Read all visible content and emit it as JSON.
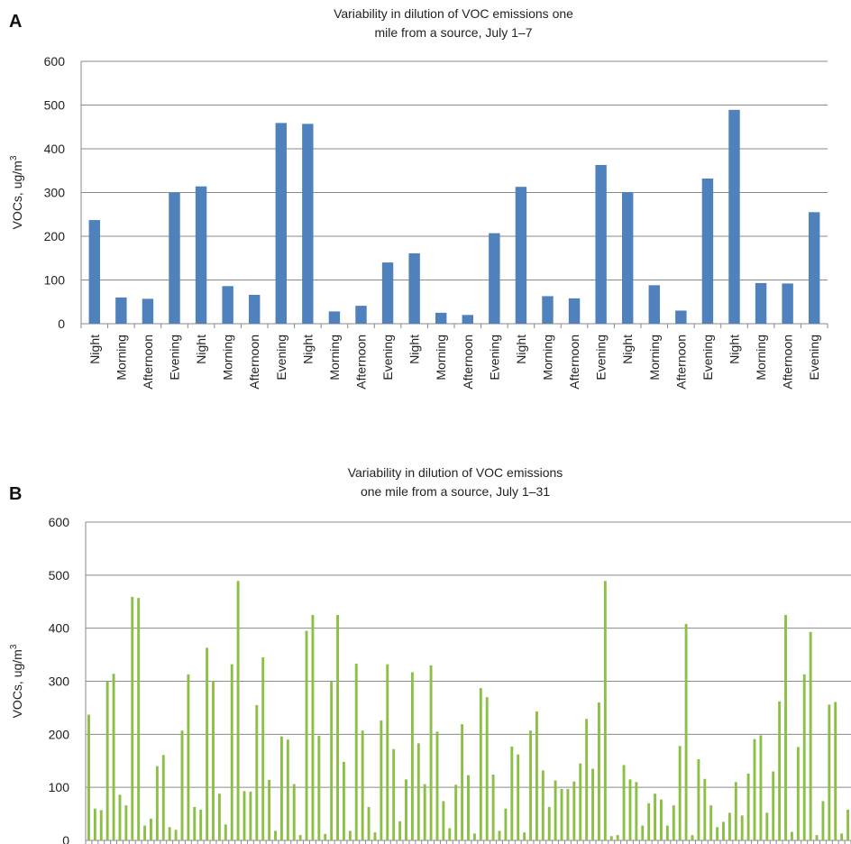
{
  "chart_data": [
    {
      "panel_label": "A",
      "type": "bar",
      "title_lines": [
        "Variability in dilution of VOC emissions one",
        "mile from a source, July 1–7"
      ],
      "ylabel": "VOCs, ug/m",
      "ylabel_sup": "3",
      "ylim": [
        0,
        600
      ],
      "yticks": [
        0,
        100,
        200,
        300,
        400,
        500,
        600
      ],
      "grid": true,
      "color": "#4f81bd",
      "categories": [
        "Night",
        "Morning",
        "Afternoon",
        "Evening",
        "Night",
        "Morning",
        "Afternoon",
        "Evening",
        "Night",
        "Morning",
        "Afternoon",
        "Evening",
        "Night",
        "Morning",
        "Afternoon",
        "Evening",
        "Night",
        "Morning",
        "Afternoon",
        "Evening",
        "Night",
        "Morning",
        "Afternoon",
        "Evening",
        "Night",
        "Morning",
        "Afternoon",
        "Evening"
      ],
      "values": [
        237,
        60,
        57,
        300,
        314,
        86,
        66,
        459,
        457,
        28,
        41,
        140,
        161,
        25,
        20,
        207,
        313,
        63,
        58,
        363,
        301,
        88,
        30,
        332,
        489,
        93,
        92,
        255
      ]
    },
    {
      "panel_label": "B",
      "type": "bar",
      "title_lines": [
        "Variability in dilution of VOC emissions",
        "one mile from a source, July 1–31"
      ],
      "ylabel": "VOCs, ug/m",
      "ylabel_sup": "3",
      "ylim": [
        0,
        600
      ],
      "yticks": [
        0,
        100,
        200,
        300,
        400,
        500,
        600
      ],
      "grid": true,
      "color": "#8cbf45",
      "values": [
        237,
        60,
        57,
        300,
        314,
        86,
        66,
        459,
        457,
        28,
        41,
        140,
        161,
        25,
        20,
        207,
        313,
        63,
        58,
        363,
        301,
        88,
        30,
        332,
        489,
        93,
        92,
        255,
        345,
        114,
        18,
        196,
        190,
        106,
        10,
        395,
        425,
        197,
        12,
        300,
        425,
        148,
        18,
        333,
        207,
        63,
        15,
        226,
        332,
        172,
        36,
        115,
        317,
        183,
        106,
        330,
        205,
        74,
        23,
        105,
        219,
        123,
        13,
        287,
        270,
        124,
        18,
        60,
        177,
        162,
        15,
        207,
        243,
        132,
        63,
        113,
        97,
        97,
        111,
        145,
        229,
        135,
        260,
        489,
        8,
        10,
        142,
        115,
        110,
        28,
        70,
        88,
        77,
        28,
        66,
        178,
        408,
        10,
        153,
        116,
        66,
        25,
        35,
        52,
        110,
        47,
        126,
        191,
        198,
        52,
        130,
        262,
        425,
        16,
        176,
        313,
        393,
        10,
        74,
        256,
        261,
        13,
        58
      ]
    }
  ]
}
